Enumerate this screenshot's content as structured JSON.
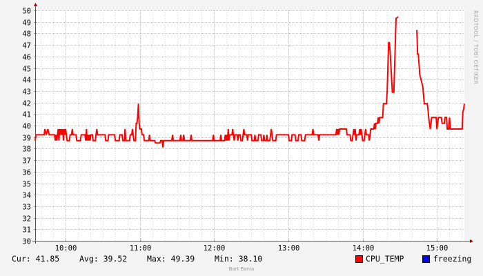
{
  "chart_data": {
    "type": "line",
    "watermark": "RRDTOOL / TOBI OETIKER",
    "footer_credit": "Bart Bania",
    "ylim": [
      30,
      50
    ],
    "y_ticks": [
      30,
      31,
      32,
      33,
      34,
      35,
      36,
      37,
      38,
      39,
      40,
      41,
      42,
      43,
      44,
      45,
      46,
      47,
      48,
      49,
      50
    ],
    "x_ticks": [
      {
        "label": "10:00",
        "t": 10.0
      },
      {
        "label": "11:00",
        "t": 11.0
      },
      {
        "label": "12:00",
        "t": 12.0
      },
      {
        "label": "13:00",
        "t": 13.0
      },
      {
        "label": "14:00",
        "t": 14.0
      },
      {
        "label": "15:00",
        "t": 15.0
      }
    ],
    "xlim": [
      9.59,
      15.37
    ],
    "grid": true,
    "series": [
      {
        "name": "CPU_TEMP",
        "color": "#ff0000",
        "points": [
          [
            9.59,
            38.7
          ],
          [
            9.6,
            39.2
          ],
          [
            9.71,
            39.2
          ],
          [
            9.72,
            39.7
          ],
          [
            9.74,
            39.2
          ],
          [
            9.76,
            39.7
          ],
          [
            9.78,
            39.2
          ],
          [
            9.85,
            39.2
          ],
          [
            9.86,
            38.7
          ],
          [
            9.87,
            39.2
          ],
          [
            9.88,
            38.7
          ],
          [
            9.89,
            39.2
          ],
          [
            9.9,
            39.7
          ],
          [
            9.91,
            38.7
          ],
          [
            9.92,
            39.7
          ],
          [
            9.93,
            39.2
          ],
          [
            9.94,
            39.7
          ],
          [
            9.95,
            39.2
          ],
          [
            9.96,
            39.7
          ],
          [
            9.97,
            38.7
          ],
          [
            9.98,
            39.7
          ],
          [
            9.99,
            39.2
          ],
          [
            10.0,
            39.7
          ],
          [
            10.01,
            39.2
          ],
          [
            10.02,
            38.7
          ],
          [
            10.05,
            38.7
          ],
          [
            10.06,
            39.2
          ],
          [
            10.08,
            39.2
          ],
          [
            10.09,
            39.7
          ],
          [
            10.1,
            39.2
          ],
          [
            10.14,
            39.2
          ],
          [
            10.15,
            38.7
          ],
          [
            10.2,
            38.7
          ],
          [
            10.21,
            39.2
          ],
          [
            10.26,
            39.2
          ],
          [
            10.27,
            38.7
          ],
          [
            10.28,
            39.7
          ],
          [
            10.29,
            38.7
          ],
          [
            10.3,
            39.2
          ],
          [
            10.31,
            38.7
          ],
          [
            10.32,
            39.2
          ],
          [
            10.33,
            38.7
          ],
          [
            10.34,
            39.2
          ],
          [
            10.36,
            39.2
          ],
          [
            10.37,
            38.7
          ],
          [
            10.4,
            38.7
          ],
          [
            10.41,
            39.2
          ],
          [
            10.42,
            39.7
          ],
          [
            10.43,
            39.2
          ],
          [
            10.53,
            39.2
          ],
          [
            10.54,
            38.7
          ],
          [
            10.57,
            38.7
          ],
          [
            10.58,
            39.2
          ],
          [
            10.66,
            39.2
          ],
          [
            10.67,
            38.7
          ],
          [
            10.72,
            38.7
          ],
          [
            10.73,
            39.2
          ],
          [
            10.76,
            39.2
          ],
          [
            10.77,
            38.7
          ],
          [
            10.79,
            38.7
          ],
          [
            10.8,
            39.7
          ],
          [
            10.81,
            38.7
          ],
          [
            10.86,
            38.7
          ],
          [
            10.87,
            39.2
          ],
          [
            10.89,
            39.2
          ],
          [
            10.9,
            39.7
          ],
          [
            10.91,
            39.2
          ],
          [
            10.92,
            38.7
          ],
          [
            10.94,
            38.7
          ],
          [
            10.95,
            40.2
          ],
          [
            10.96,
            40.2
          ],
          [
            10.97,
            40.7
          ],
          [
            10.98,
            41.9
          ],
          [
            10.99,
            40.2
          ],
          [
            11.0,
            39.7
          ],
          [
            11.02,
            39.7
          ],
          [
            11.03,
            39.2
          ],
          [
            11.05,
            39.2
          ],
          [
            11.06,
            38.7
          ],
          [
            11.12,
            38.7
          ],
          [
            11.13,
            39.2
          ],
          [
            11.14,
            38.7
          ],
          [
            11.2,
            38.7
          ],
          [
            11.21,
            38.5
          ],
          [
            11.27,
            38.5
          ],
          [
            11.28,
            38.7
          ],
          [
            11.3,
            38.7
          ],
          [
            11.31,
            38.1
          ],
          [
            11.32,
            38.7
          ],
          [
            11.43,
            38.7
          ],
          [
            11.44,
            39.2
          ],
          [
            11.45,
            38.7
          ],
          [
            11.54,
            38.7
          ],
          [
            11.55,
            39.2
          ],
          [
            11.56,
            38.7
          ],
          [
            11.58,
            38.7
          ],
          [
            11.59,
            39.2
          ],
          [
            11.6,
            38.7
          ],
          [
            11.68,
            38.7
          ],
          [
            11.69,
            39.2
          ],
          [
            11.7,
            38.7
          ],
          [
            11.98,
            38.7
          ],
          [
            11.99,
            39.2
          ],
          [
            12.0,
            38.7
          ],
          [
            12.08,
            38.7
          ],
          [
            12.09,
            39.2
          ],
          [
            12.1,
            38.7
          ],
          [
            12.14,
            38.7
          ],
          [
            12.15,
            39.2
          ],
          [
            12.16,
            38.7
          ],
          [
            12.17,
            39.2
          ],
          [
            12.18,
            38.7
          ],
          [
            12.19,
            39.7
          ],
          [
            12.2,
            38.7
          ],
          [
            12.21,
            39.2
          ],
          [
            12.24,
            39.2
          ],
          [
            12.25,
            39.7
          ],
          [
            12.26,
            39.2
          ],
          [
            12.27,
            38.7
          ],
          [
            12.28,
            39.2
          ],
          [
            12.31,
            39.2
          ],
          [
            12.32,
            38.7
          ],
          [
            12.33,
            39.2
          ],
          [
            12.35,
            39.2
          ],
          [
            12.36,
            38.7
          ],
          [
            12.38,
            38.7
          ],
          [
            12.39,
            39.2
          ],
          [
            12.4,
            39.7
          ],
          [
            12.41,
            39.2
          ],
          [
            12.44,
            39.2
          ],
          [
            12.45,
            38.7
          ],
          [
            12.46,
            39.2
          ],
          [
            12.5,
            39.2
          ],
          [
            12.51,
            38.7
          ],
          [
            12.54,
            38.7
          ],
          [
            12.55,
            39.2
          ],
          [
            12.56,
            38.7
          ],
          [
            12.59,
            38.7
          ],
          [
            12.6,
            39.2
          ],
          [
            12.63,
            39.2
          ],
          [
            12.64,
            38.7
          ],
          [
            12.66,
            38.7
          ],
          [
            12.67,
            39.2
          ],
          [
            12.68,
            38.7
          ],
          [
            12.7,
            38.7
          ],
          [
            12.71,
            39.2
          ],
          [
            12.72,
            38.7
          ],
          [
            12.75,
            38.7
          ],
          [
            12.76,
            39.2
          ],
          [
            12.77,
            39.7
          ],
          [
            12.78,
            39.2
          ],
          [
            12.79,
            38.7
          ],
          [
            12.83,
            38.7
          ],
          [
            12.84,
            39.2
          ],
          [
            13.0,
            39.2
          ],
          [
            13.01,
            38.7
          ],
          [
            13.04,
            38.7
          ],
          [
            13.05,
            39.2
          ],
          [
            13.09,
            39.2
          ],
          [
            13.1,
            38.7
          ],
          [
            13.13,
            38.7
          ],
          [
            13.14,
            39.2
          ],
          [
            13.17,
            39.2
          ],
          [
            13.18,
            38.7
          ],
          [
            13.22,
            38.7
          ],
          [
            13.23,
            39.2
          ],
          [
            13.32,
            39.2
          ],
          [
            13.33,
            39.7
          ],
          [
            13.34,
            39.2
          ],
          [
            13.4,
            39.2
          ],
          [
            13.41,
            38.7
          ],
          [
            13.42,
            39.2
          ],
          [
            13.64,
            39.2
          ],
          [
            13.65,
            39.7
          ],
          [
            13.66,
            39.2
          ],
          [
            13.67,
            39.7
          ],
          [
            13.68,
            39.2
          ],
          [
            13.69,
            39.7
          ],
          [
            13.78,
            39.7
          ],
          [
            13.79,
            39.2
          ],
          [
            13.83,
            39.2
          ],
          [
            13.84,
            38.7
          ],
          [
            13.86,
            38.7
          ],
          [
            13.87,
            39.2
          ],
          [
            13.88,
            39.7
          ],
          [
            13.89,
            39.2
          ],
          [
            13.9,
            39.7
          ],
          [
            13.91,
            38.7
          ],
          [
            13.92,
            39.2
          ],
          [
            13.95,
            39.2
          ],
          [
            13.96,
            39.7
          ],
          [
            13.97,
            39.2
          ],
          [
            13.98,
            39.7
          ],
          [
            13.99,
            39.2
          ],
          [
            14.0,
            38.7
          ],
          [
            14.02,
            38.7
          ],
          [
            14.03,
            39.2
          ],
          [
            14.04,
            39.7
          ],
          [
            14.05,
            39.2
          ],
          [
            14.08,
            39.2
          ],
          [
            14.09,
            38.7
          ],
          [
            14.1,
            39.2
          ],
          [
            14.11,
            39.7
          ],
          [
            14.15,
            39.7
          ],
          [
            14.16,
            40.2
          ],
          [
            14.17,
            39.7
          ],
          [
            14.18,
            40.2
          ],
          [
            14.2,
            40.2
          ],
          [
            14.21,
            40.7
          ],
          [
            14.22,
            40.2
          ],
          [
            14.23,
            40.7
          ],
          [
            14.27,
            40.7
          ],
          [
            14.28,
            41.9
          ],
          [
            14.32,
            41.9
          ],
          [
            14.33,
            42.9
          ],
          [
            14.35,
            47.2
          ],
          [
            14.36,
            47.2
          ],
          [
            14.37,
            46.4
          ],
          [
            14.4,
            42.9
          ],
          [
            14.42,
            42.9
          ],
          [
            14.45,
            49.3
          ],
          [
            14.47,
            49.4
          ],
          [
            14.48,
            49.4
          ]
        ]
      },
      {
        "name": "CPU_TEMP_seg2",
        "color": "#ff0000",
        "points": [
          [
            14.73,
            48.3
          ],
          [
            14.74,
            46.2
          ],
          [
            14.75,
            46.2
          ],
          [
            14.77,
            44.4
          ],
          [
            14.79,
            43.9
          ],
          [
            14.81,
            43.4
          ],
          [
            14.83,
            41.9
          ],
          [
            14.87,
            41.9
          ],
          [
            14.88,
            41.4
          ],
          [
            14.89,
            40.7
          ],
          [
            14.9,
            40.2
          ],
          [
            14.91,
            39.7
          ],
          [
            14.92,
            40.2
          ],
          [
            14.93,
            40.7
          ],
          [
            14.99,
            40.7
          ],
          [
            15.0,
            39.7
          ],
          [
            15.01,
            40.2
          ],
          [
            15.02,
            40.7
          ],
          [
            15.06,
            40.7
          ],
          [
            15.07,
            40.2
          ],
          [
            15.1,
            40.2
          ],
          [
            15.11,
            40.7
          ],
          [
            15.13,
            40.7
          ],
          [
            15.14,
            39.7
          ],
          [
            15.16,
            39.7
          ],
          [
            15.17,
            40.7
          ],
          [
            15.18,
            39.7
          ],
          [
            15.34,
            39.7
          ],
          [
            15.35,
            41.2
          ],
          [
            15.36,
            41.4
          ],
          [
            15.37,
            41.9
          ]
        ]
      }
    ]
  },
  "stats": {
    "cur": "Cur: 41.85",
    "avg": "Avg: 39.52",
    "max": "Max: 49.39",
    "min": "Min: 38.10"
  },
  "legend": [
    {
      "label": "CPU_TEMP",
      "color": "#ff0000"
    },
    {
      "label": "freezing",
      "color": "#0000ff"
    }
  ]
}
